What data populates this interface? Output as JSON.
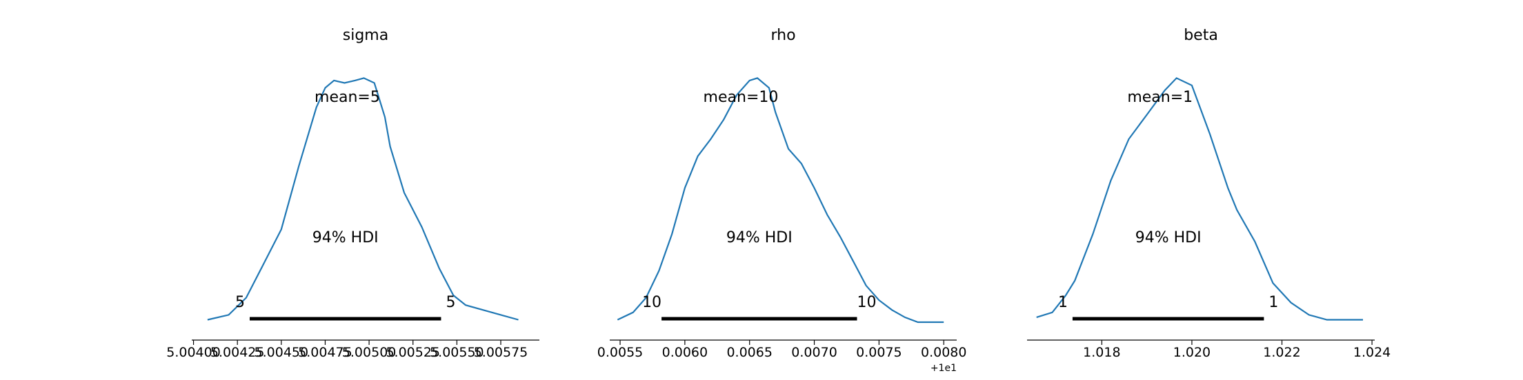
{
  "chart_data": [
    {
      "type": "line",
      "title": "sigma",
      "mean_label": "mean=5",
      "hdi_label": "94% HDI",
      "hdi_low_label": "5",
      "hdi_high_label": "5",
      "hdi": [
        5.00432,
        5.00541
      ],
      "xlim": [
        5.00399,
        5.00597
      ],
      "ticks": [
        5.004,
        5.00425,
        5.0045,
        5.00475,
        5.005,
        5.00525,
        5.0055,
        5.00575
      ],
      "tick_labels": [
        "5.00400",
        "5.00425",
        "5.00450",
        "5.00475",
        "5.00500",
        "5.00525",
        "5.00550",
        "5.00575"
      ],
      "offset_label": "",
      "ylim": [
        0,
        1.08
      ],
      "x": [
        5.00408,
        5.0042,
        5.0043,
        5.0044,
        5.0045,
        5.0046,
        5.0047,
        5.00475,
        5.0048,
        5.00486,
        5.00492,
        5.00497,
        5.00503,
        5.00509,
        5.00512,
        5.0052,
        5.0053,
        5.0054,
        5.00548,
        5.00555,
        5.00565,
        5.00575,
        5.00585
      ],
      "density": [
        0.01,
        0.03,
        0.1,
        0.24,
        0.38,
        0.64,
        0.88,
        0.96,
        0.99,
        0.98,
        0.99,
        1.0,
        0.98,
        0.84,
        0.72,
        0.53,
        0.39,
        0.22,
        0.11,
        0.07,
        0.05,
        0.03,
        0.01
      ]
    },
    {
      "type": "line",
      "title": "rho",
      "mean_label": "mean=10",
      "hdi_label": "94% HDI",
      "hdi_low_label": "10",
      "hdi_high_label": "10",
      "hdi": [
        10.00582,
        10.00733
      ],
      "xlim": [
        10.00542,
        10.0081
      ],
      "ticks": [
        10.0055,
        10.006,
        10.0065,
        10.007,
        10.0075,
        10.008
      ],
      "tick_labels": [
        "0.0055",
        "0.0060",
        "0.0065",
        "0.0070",
        "0.0075",
        "0.0080"
      ],
      "offset_label": "+1e1",
      "ylim": [
        0,
        1.08
      ],
      "x": [
        10.00548,
        10.0056,
        10.0057,
        10.0058,
        10.0059,
        10.006,
        10.0061,
        10.0062,
        10.0063,
        10.0064,
        10.0065,
        10.00656,
        10.00665,
        10.0067,
        10.0068,
        10.0069,
        10.007,
        10.0071,
        10.0072,
        10.0073,
        10.0074,
        10.0075,
        10.0076,
        10.0077,
        10.0078,
        10.008
      ],
      "density": [
        0.01,
        0.04,
        0.1,
        0.21,
        0.36,
        0.55,
        0.68,
        0.75,
        0.83,
        0.93,
        0.99,
        1.0,
        0.96,
        0.86,
        0.71,
        0.65,
        0.55,
        0.44,
        0.35,
        0.25,
        0.15,
        0.09,
        0.05,
        0.02,
        0.0,
        0.0
      ]
    },
    {
      "type": "line",
      "title": "beta",
      "mean_label": "mean=1",
      "hdi_label": "94% HDI",
      "hdi_low_label": "1",
      "hdi_high_label": "1",
      "hdi": [
        1.01735,
        1.0216
      ],
      "xlim": [
        1.01634,
        1.02406
      ],
      "ticks": [
        1.018,
        1.02,
        1.022,
        1.024
      ],
      "tick_labels": [
        "1.018",
        "1.020",
        "1.022",
        "1.024"
      ],
      "offset_label": "",
      "ylim": [
        0,
        1.08
      ],
      "x": [
        1.01655,
        1.0169,
        1.0172,
        1.0174,
        1.0178,
        1.0182,
        1.0186,
        1.019,
        1.0194,
        1.01966,
        1.02,
        1.0204,
        1.0208,
        1.021,
        1.0214,
        1.0218,
        1.0222,
        1.0226,
        1.023,
        1.0233,
        1.0238
      ],
      "density": [
        0.02,
        0.04,
        0.11,
        0.17,
        0.36,
        0.58,
        0.75,
        0.85,
        0.95,
        1.0,
        0.97,
        0.77,
        0.55,
        0.46,
        0.33,
        0.16,
        0.08,
        0.03,
        0.01,
        0.01,
        0.01
      ]
    }
  ]
}
